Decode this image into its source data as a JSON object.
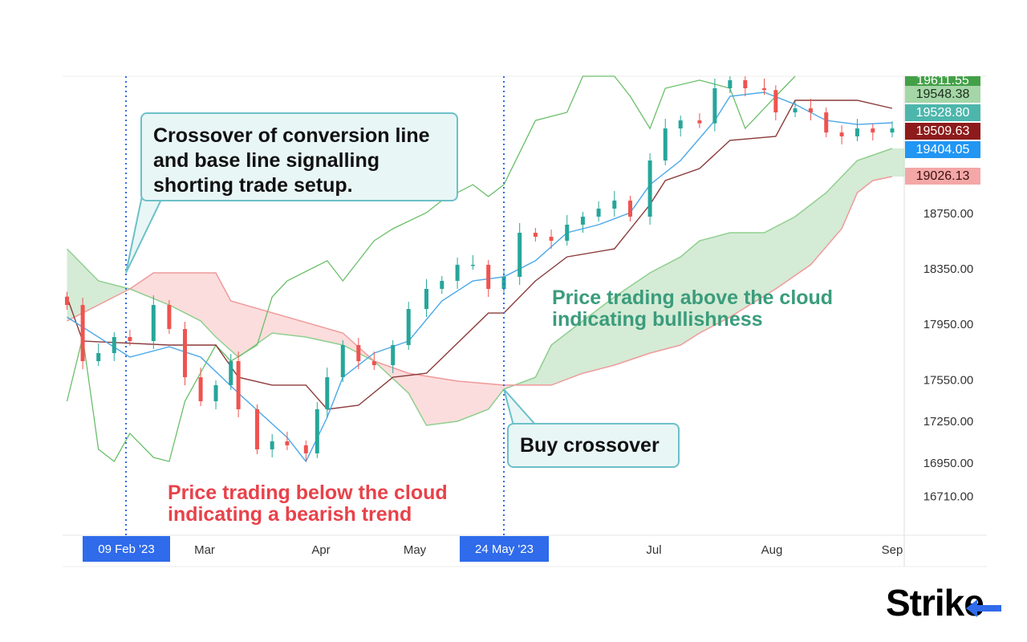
{
  "chart_data": {
    "type": "candlestick-ichimoku",
    "x_ticks": [
      "Mar",
      "Apr",
      "May",
      "Jul",
      "Aug",
      "Sep"
    ],
    "y_ticks": [
      18750,
      18350,
      17950,
      17550,
      17250,
      16950,
      16710
    ],
    "y_tick_labels": [
      "18750.00",
      "18350.00",
      "17950.00",
      "17550.00",
      "17250.00",
      "16950.00",
      "16710.00"
    ],
    "highlight_dates": [
      "09 Feb '23",
      "24 May '23"
    ],
    "price_labels": [
      {
        "value": "19611.55",
        "color": "#43a047",
        "text_color": "#ffffff"
      },
      {
        "value": "19548.38",
        "color": "#a5d6a7",
        "text_color": "#1b2e1b"
      },
      {
        "value": "19528.80",
        "color": "#4db6ac",
        "text_color": "#ffffff"
      },
      {
        "value": "19509.63",
        "color": "#8e1b1b",
        "text_color": "#ffffff"
      },
      {
        "value": "19404.05",
        "color": "#2196f3",
        "text_color": "#ffffff"
      },
      {
        "value": "19026.13",
        "color": "#f4a7a7",
        "text_color": "#3a1010"
      }
    ],
    "colors": {
      "up": "#26a69a",
      "down": "#ef5350",
      "conversion": "#4aa8e8",
      "base": "#8b3a3a",
      "lagging": "#6abf69",
      "span_a": "#8fcf8f",
      "span_b": "#ef9a9a",
      "cloud_bull": "#c8e6c9",
      "cloud_bear": "#fbd3d3",
      "marker": "#2f6bea"
    },
    "candles": [
      {
        "d": "2023-01-25",
        "o": 18150,
        "c": 18090
      },
      {
        "d": "2023-01-29",
        "o": 18090,
        "c": 17685
      },
      {
        "d": "2023-02-02",
        "o": 17685,
        "c": 17743
      },
      {
        "d": "2023-02-06",
        "o": 17743,
        "c": 17859
      },
      {
        "d": "2023-02-10",
        "o": 17859,
        "c": 17830
      },
      {
        "d": "2023-02-16",
        "o": 17830,
        "c": 18090
      },
      {
        "d": "2023-02-20",
        "o": 18090,
        "c": 17917
      },
      {
        "d": "2023-02-24",
        "o": 17917,
        "c": 17569
      },
      {
        "d": "2023-02-28",
        "o": 17569,
        "c": 17396
      },
      {
        "d": "2023-03-04",
        "o": 17396,
        "c": 17512
      },
      {
        "d": "2023-03-08",
        "o": 17512,
        "c": 17685
      },
      {
        "d": "2023-03-10",
        "o": 17685,
        "c": 17338
      },
      {
        "d": "2023-03-15",
        "o": 17338,
        "c": 17049
      },
      {
        "d": "2023-03-19",
        "o": 17049,
        "c": 17107
      },
      {
        "d": "2023-03-23",
        "o": 17107,
        "c": 17078
      },
      {
        "d": "2023-03-28",
        "o": 17078,
        "c": 17020
      },
      {
        "d": "2023-03-31",
        "o": 17020,
        "c": 17338
      },
      {
        "d": "2023-04-03",
        "o": 17338,
        "c": 17569
      },
      {
        "d": "2023-04-08",
        "o": 17569,
        "c": 17801
      },
      {
        "d": "2023-04-13",
        "o": 17801,
        "c": 17685
      },
      {
        "d": "2023-04-18",
        "o": 17685,
        "c": 17656
      },
      {
        "d": "2023-04-24",
        "o": 17656,
        "c": 17801
      },
      {
        "d": "2023-04-29",
        "o": 17801,
        "c": 18061
      },
      {
        "d": "2023-05-04",
        "o": 18061,
        "c": 18206
      },
      {
        "d": "2023-05-08",
        "o": 18206,
        "c": 18264
      },
      {
        "d": "2023-05-12",
        "o": 18264,
        "c": 18380
      },
      {
        "d": "2023-05-16",
        "o": 18380,
        "c": 18380
      },
      {
        "d": "2023-05-20",
        "o": 18380,
        "c": 18206
      },
      {
        "d": "2023-05-24",
        "o": 18206,
        "c": 18293
      },
      {
        "d": "2023-05-28",
        "o": 18293,
        "c": 18611
      },
      {
        "d": "2023-06-01",
        "o": 18611,
        "c": 18582
      },
      {
        "d": "2023-06-05",
        "o": 18582,
        "c": 18553
      },
      {
        "d": "2023-06-09",
        "o": 18553,
        "c": 18669
      },
      {
        "d": "2023-06-13",
        "o": 18669,
        "c": 18727
      },
      {
        "d": "2023-06-17",
        "o": 18727,
        "c": 18785
      },
      {
        "d": "2023-06-21",
        "o": 18785,
        "c": 18843
      },
      {
        "d": "2023-06-25",
        "o": 18843,
        "c": 18727
      },
      {
        "d": "2023-06-30",
        "o": 18727,
        "c": 19132
      },
      {
        "d": "2023-07-04",
        "o": 19132,
        "c": 19363
      },
      {
        "d": "2023-07-08",
        "o": 19363,
        "c": 19421
      },
      {
        "d": "2023-07-13",
        "o": 19421,
        "c": 19400
      },
      {
        "d": "2023-07-17",
        "o": 19400,
        "c": 19653
      },
      {
        "d": "2023-07-21",
        "o": 19653,
        "c": 19711
      },
      {
        "d": "2023-07-25",
        "o": 19711,
        "c": 19653
      },
      {
        "d": "2023-07-30",
        "o": 19653,
        "c": 19640
      },
      {
        "d": "2023-08-02",
        "o": 19640,
        "c": 19479
      },
      {
        "d": "2023-08-07",
        "o": 19479,
        "c": 19508
      },
      {
        "d": "2023-08-11",
        "o": 19508,
        "c": 19479
      },
      {
        "d": "2023-08-15",
        "o": 19479,
        "c": 19334
      },
      {
        "d": "2023-08-19",
        "o": 19334,
        "c": 19306
      },
      {
        "d": "2023-08-23",
        "o": 19306,
        "c": 19363
      },
      {
        "d": "2023-08-27",
        "o": 19363,
        "c": 19334
      },
      {
        "d": "2023-09-01",
        "o": 19334,
        "c": 19363
      }
    ],
    "series": [
      {
        "key": "conversion",
        "points": [
          [
            "2023-01-25",
            18003
          ],
          [
            "2023-02-10",
            17714
          ],
          [
            "2023-02-20",
            17789
          ],
          [
            "2023-02-28",
            17714
          ],
          [
            "2023-03-10",
            17454
          ],
          [
            "2023-03-23",
            17135
          ],
          [
            "2023-03-28",
            16962
          ],
          [
            "2023-04-03",
            17280
          ],
          [
            "2023-04-08",
            17569
          ],
          [
            "2023-04-18",
            17743
          ],
          [
            "2023-04-29",
            17830
          ],
          [
            "2023-05-08",
            18119
          ],
          [
            "2023-05-16",
            18264
          ],
          [
            "2023-05-24",
            18293
          ],
          [
            "2023-06-01",
            18409
          ],
          [
            "2023-06-09",
            18611
          ],
          [
            "2023-06-17",
            18669
          ],
          [
            "2023-06-25",
            18756
          ],
          [
            "2023-06-30",
            18958
          ],
          [
            "2023-07-08",
            19132
          ],
          [
            "2023-07-17",
            19421
          ],
          [
            "2023-07-21",
            19595
          ],
          [
            "2023-07-30",
            19624
          ],
          [
            "2023-08-07",
            19537
          ],
          [
            "2023-08-15",
            19421
          ],
          [
            "2023-08-23",
            19392
          ],
          [
            "2023-09-01",
            19404
          ]
        ]
      },
      {
        "key": "base",
        "points": [
          [
            "2023-01-25",
            18148
          ],
          [
            "2023-01-29",
            17830
          ],
          [
            "2023-02-20",
            17801
          ],
          [
            "2023-03-04",
            17801
          ],
          [
            "2023-03-10",
            17569
          ],
          [
            "2023-03-19",
            17512
          ],
          [
            "2023-03-28",
            17512
          ],
          [
            "2023-04-03",
            17338
          ],
          [
            "2023-04-13",
            17367
          ],
          [
            "2023-04-24",
            17569
          ],
          [
            "2023-05-04",
            17598
          ],
          [
            "2023-05-20",
            18032
          ],
          [
            "2023-05-24",
            18032
          ],
          [
            "2023-06-01",
            18264
          ],
          [
            "2023-06-09",
            18437
          ],
          [
            "2023-06-21",
            18495
          ],
          [
            "2023-06-30",
            18814
          ],
          [
            "2023-07-04",
            18987
          ],
          [
            "2023-07-13",
            19074
          ],
          [
            "2023-07-21",
            19277
          ],
          [
            "2023-08-02",
            19306
          ],
          [
            "2023-08-07",
            19566
          ],
          [
            "2023-08-23",
            19566
          ],
          [
            "2023-09-01",
            19508
          ]
        ]
      },
      {
        "key": "lagging",
        "points": [
          [
            "2023-01-25",
            17396
          ],
          [
            "2023-01-29",
            17859
          ],
          [
            "2023-02-02",
            17049
          ],
          [
            "2023-02-06",
            16962
          ],
          [
            "2023-02-10",
            17164
          ],
          [
            "2023-02-16",
            16991
          ],
          [
            "2023-02-20",
            16962
          ],
          [
            "2023-02-24",
            17396
          ],
          [
            "2023-03-04",
            17801
          ],
          [
            "2023-03-08",
            17685
          ],
          [
            "2023-03-15",
            17801
          ],
          [
            "2023-03-19",
            18148
          ],
          [
            "2023-03-23",
            18264
          ],
          [
            "2023-04-03",
            18409
          ],
          [
            "2023-04-08",
            18264
          ],
          [
            "2023-04-18",
            18553
          ],
          [
            "2023-04-24",
            18640
          ],
          [
            "2023-05-04",
            18756
          ],
          [
            "2023-05-08",
            18843
          ],
          [
            "2023-05-16",
            18958
          ],
          [
            "2023-05-20",
            18872
          ],
          [
            "2023-05-24",
            18958
          ],
          [
            "2023-06-01",
            19421
          ],
          [
            "2023-06-09",
            19479
          ],
          [
            "2023-06-13",
            19740
          ],
          [
            "2023-06-21",
            19740
          ],
          [
            "2023-06-25",
            19595
          ],
          [
            "2023-06-30",
            19363
          ],
          [
            "2023-07-04",
            19653
          ],
          [
            "2023-07-13",
            19711
          ],
          [
            "2023-07-21",
            19653
          ],
          [
            "2023-07-25",
            19363
          ],
          [
            "2023-08-02",
            19595
          ],
          [
            "2023-08-07",
            19740
          ]
        ]
      },
      {
        "key": "span_a",
        "points": [
          [
            "2023-01-25",
            18495
          ],
          [
            "2023-02-02",
            18264
          ],
          [
            "2023-02-10",
            18206
          ],
          [
            "2023-02-20",
            18090
          ],
          [
            "2023-02-28",
            17975
          ],
          [
            "2023-03-04",
            17859
          ],
          [
            "2023-03-10",
            17714
          ],
          [
            "2023-03-19",
            17888
          ],
          [
            "2023-03-28",
            17859
          ],
          [
            "2023-04-08",
            17801
          ],
          [
            "2023-04-18",
            17685
          ],
          [
            "2023-04-29",
            17454
          ],
          [
            "2023-05-04",
            17222
          ],
          [
            "2023-05-12",
            17251
          ],
          [
            "2023-05-20",
            17338
          ],
          [
            "2023-05-24",
            17483
          ],
          [
            "2023-06-01",
            17569
          ],
          [
            "2023-06-05",
            17801
          ],
          [
            "2023-06-13",
            17975
          ],
          [
            "2023-06-21",
            18148
          ],
          [
            "2023-06-30",
            18322
          ],
          [
            "2023-07-08",
            18437
          ],
          [
            "2023-07-13",
            18553
          ],
          [
            "2023-07-21",
            18611
          ],
          [
            "2023-07-30",
            18611
          ],
          [
            "2023-08-07",
            18727
          ],
          [
            "2023-08-15",
            18900
          ],
          [
            "2023-08-23",
            19132
          ],
          [
            "2023-09-01",
            19219
          ]
        ]
      },
      {
        "key": "span_b",
        "points": [
          [
            "2023-01-25",
            17975
          ],
          [
            "2023-02-02",
            18090
          ],
          [
            "2023-02-10",
            18206
          ],
          [
            "2023-02-16",
            18322
          ],
          [
            "2023-03-04",
            18322
          ],
          [
            "2023-03-08",
            18119
          ],
          [
            "2023-04-08",
            17888
          ],
          [
            "2023-04-18",
            17685
          ],
          [
            "2023-04-29",
            17598
          ],
          [
            "2023-05-12",
            17541
          ],
          [
            "2023-05-24",
            17512
          ],
          [
            "2023-06-05",
            17512
          ],
          [
            "2023-06-13",
            17598
          ],
          [
            "2023-06-21",
            17656
          ],
          [
            "2023-06-30",
            17743
          ],
          [
            "2023-07-08",
            17801
          ],
          [
            "2023-07-13",
            17888
          ],
          [
            "2023-07-21",
            18003
          ],
          [
            "2023-08-02",
            18206
          ],
          [
            "2023-08-11",
            18380
          ],
          [
            "2023-08-19",
            18640
          ],
          [
            "2023-08-23",
            18900
          ],
          [
            "2023-08-27",
            18987
          ],
          [
            "2023-09-01",
            19016
          ]
        ]
      }
    ],
    "annotations": {
      "short_callout": [
        "Crossover of conversion line",
        "and base line signalling",
        "shorting trade setup."
      ],
      "buy_callout": "Buy crossover",
      "bearish": [
        "Price trading below the cloud",
        "indicating a bearish trend"
      ],
      "bullish": [
        "Price trading above the cloud",
        "indicating bullishness"
      ]
    }
  },
  "logo": "Strike"
}
